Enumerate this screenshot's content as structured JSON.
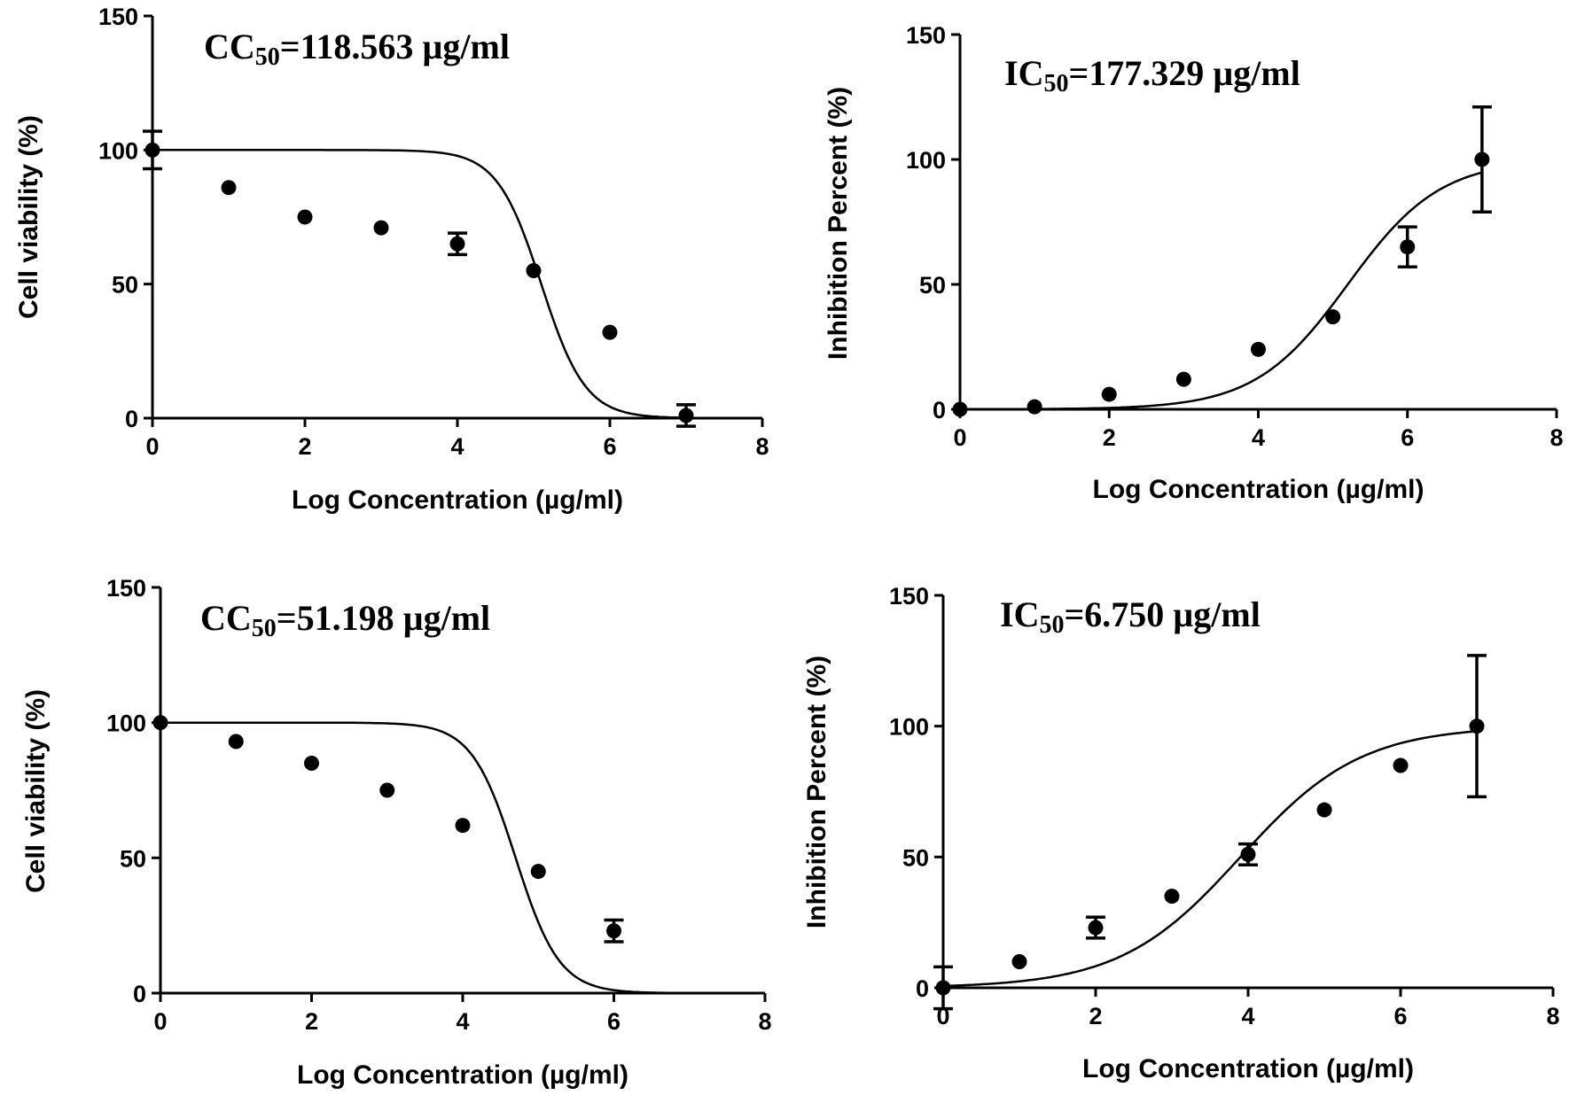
{
  "chart_data": [
    {
      "type": "scatter",
      "panel": "top-left",
      "xlabel": "Log Concentration (µg/ml)",
      "ylabel": "Cell viability (%)",
      "xlim": [
        0,
        8
      ],
      "ylim": [
        0,
        150
      ],
      "xticks": [
        "0",
        "2",
        "4",
        "6",
        "8"
      ],
      "yticks": [
        "0",
        "50",
        "100",
        "150"
      ],
      "annotation": {
        "prefix": "CC",
        "subscript": "50",
        "value": "=118.563 µg/ml"
      },
      "points": [
        {
          "x": 0,
          "y": 100,
          "err": 7
        },
        {
          "x": 1,
          "y": 86,
          "err": 0
        },
        {
          "x": 2,
          "y": 75,
          "err": 0
        },
        {
          "x": 3,
          "y": 71,
          "err": 0
        },
        {
          "x": 4,
          "y": 65,
          "err": 4
        },
        {
          "x": 5,
          "y": 55,
          "err": 0
        },
        {
          "x": 6,
          "y": 32,
          "err": 0
        },
        {
          "x": 7,
          "y": 1,
          "err": 4
        }
      ],
      "fit": {
        "kind": "decreasing",
        "top": 100,
        "bottom": 0,
        "x50": 5.1,
        "hill": 1.5,
        "xrange": [
          0,
          7
        ]
      }
    },
    {
      "type": "scatter",
      "panel": "top-right",
      "xlabel": "Log Concentration (µg/ml)",
      "ylabel": "Inhibition Percent (%)",
      "xlim": [
        0,
        8
      ],
      "ylim": [
        0,
        150
      ],
      "xticks": [
        "0",
        "2",
        "4",
        "6",
        "8"
      ],
      "yticks": [
        "0",
        "50",
        "100",
        "150"
      ],
      "annotation": {
        "prefix": "IC",
        "subscript": "50",
        "value": "=177.329 µg/ml"
      },
      "points": [
        {
          "x": 0,
          "y": 0,
          "err": 0
        },
        {
          "x": 1,
          "y": 1,
          "err": 0
        },
        {
          "x": 2,
          "y": 6,
          "err": 0
        },
        {
          "x": 3,
          "y": 12,
          "err": 0
        },
        {
          "x": 4,
          "y": 24,
          "err": 0
        },
        {
          "x": 5,
          "y": 37,
          "err": 0
        },
        {
          "x": 6,
          "y": 65,
          "err": 8
        },
        {
          "x": 7,
          "y": 100,
          "err": 21
        }
      ],
      "fit": {
        "kind": "increasing",
        "top": 100,
        "bottom": 0,
        "x50": 5.2,
        "hill": 0.7,
        "xrange": [
          0,
          7
        ]
      }
    },
    {
      "type": "scatter",
      "panel": "bottom-left",
      "xlabel": "Log Concentration (µg/ml)",
      "ylabel": "Cell viability (%)",
      "xlim": [
        0,
        8
      ],
      "ylim": [
        0,
        150
      ],
      "xticks": [
        "0",
        "2",
        "4",
        "6",
        "8"
      ],
      "yticks": [
        "0",
        "50",
        "100",
        "150"
      ],
      "annotation": {
        "prefix": "CC",
        "subscript": "50",
        "value": "=51.198 µg/ml"
      },
      "points": [
        {
          "x": 0,
          "y": 100,
          "err": 0
        },
        {
          "x": 1,
          "y": 93,
          "err": 0
        },
        {
          "x": 2,
          "y": 85,
          "err": 0
        },
        {
          "x": 3,
          "y": 75,
          "err": 0
        },
        {
          "x": 4,
          "y": 62,
          "err": 0
        },
        {
          "x": 5,
          "y": 45,
          "err": 0
        },
        {
          "x": 6,
          "y": 23,
          "err": 4
        }
      ],
      "fit": {
        "kind": "decreasing",
        "top": 100,
        "bottom": 0,
        "x50": 4.7,
        "hill": 1.5,
        "xrange": [
          0,
          8
        ]
      }
    },
    {
      "type": "scatter",
      "panel": "bottom-right",
      "xlabel": "Log Concentration (µg/ml)",
      "ylabel": "Inhibition Percent (%)",
      "xlim": [
        0,
        8
      ],
      "ylim": [
        0,
        150
      ],
      "xticks": [
        "0",
        "2",
        "4",
        "6",
        "8"
      ],
      "yticks": [
        "0",
        "50",
        "100",
        "150"
      ],
      "annotation": {
        "prefix": "IC",
        "subscript": "50",
        "value": "=6.750 µg/ml"
      },
      "points": [
        {
          "x": 0,
          "y": 0,
          "err": 8
        },
        {
          "x": 1,
          "y": 10,
          "err": 0
        },
        {
          "x": 2,
          "y": 23,
          "err": 4
        },
        {
          "x": 3,
          "y": 35,
          "err": 0
        },
        {
          "x": 4,
          "y": 51,
          "err": 4
        },
        {
          "x": 5,
          "y": 68,
          "err": 0
        },
        {
          "x": 6,
          "y": 85,
          "err": 0
        },
        {
          "x": 7,
          "y": 100,
          "err": 27
        }
      ],
      "fit": {
        "kind": "increasing",
        "top": 100,
        "bottom": 0,
        "x50": 3.9,
        "hill": 0.55,
        "xrange": [
          0,
          7
        ]
      }
    }
  ]
}
